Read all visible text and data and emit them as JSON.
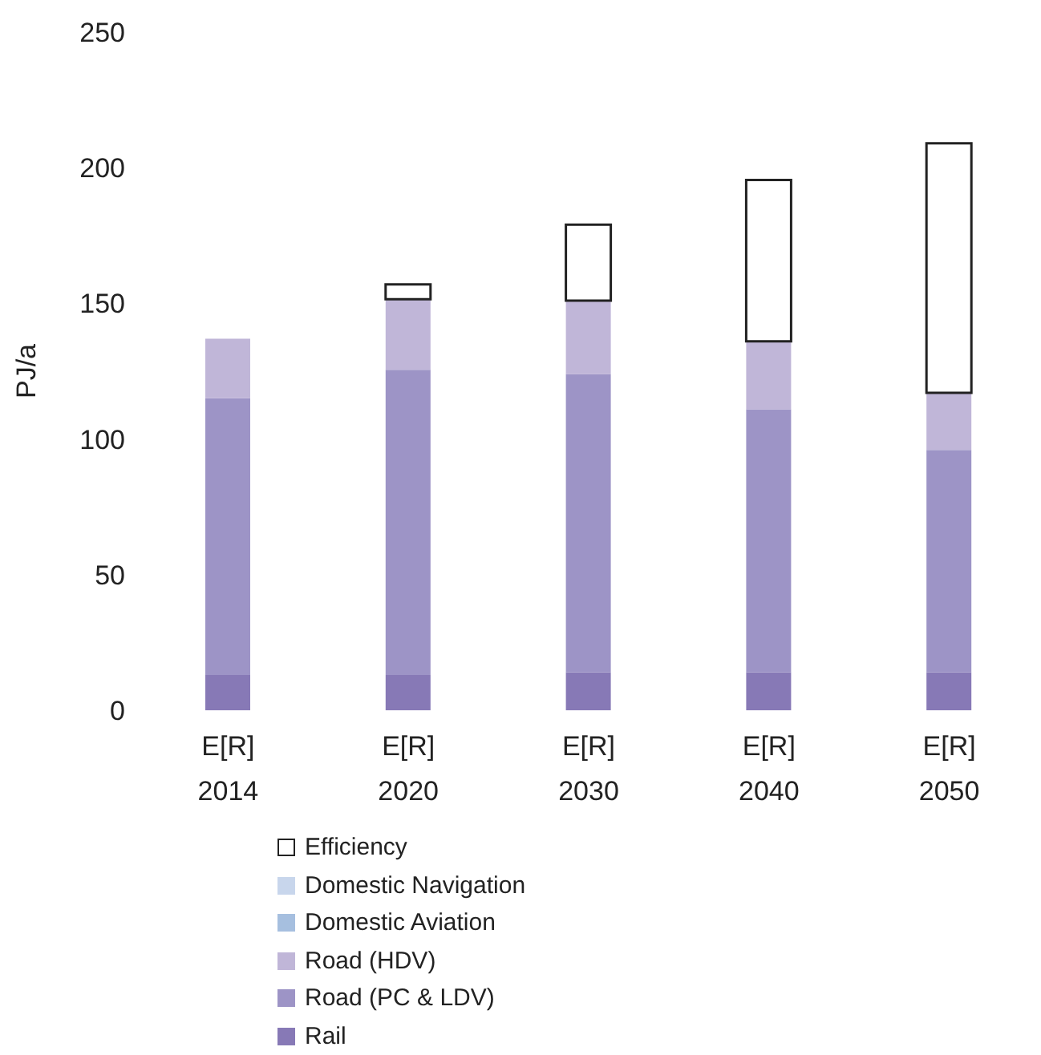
{
  "chart_data": {
    "type": "bar",
    "ylabel": "PJ/a",
    "categories": [
      "E[R]\n2014",
      "E[R]\n2020",
      "E[R]\n2030",
      "E[R]\n2040",
      "E[R]\n2050"
    ],
    "stacked": true,
    "ylim": [
      0,
      250
    ],
    "yticks": [
      0,
      50,
      100,
      150,
      200,
      250
    ],
    "grid": false,
    "legend": "bottom",
    "series": [
      {
        "name": "Rail",
        "color": "#8779b6",
        "values": [
          13,
          13,
          14,
          14,
          14
        ]
      },
      {
        "name": "Road (PC & LDV)",
        "color": "#9d94c6",
        "values": [
          102,
          112.5,
          110,
          97,
          82
        ]
      },
      {
        "name": "Road (HDV)",
        "color": "#c0b6d8",
        "values": [
          22,
          26,
          27,
          25,
          21
        ]
      },
      {
        "name": "Domestic Aviation",
        "color": "#a6bfdf",
        "values": [
          0,
          null,
          null,
          null,
          null
        ]
      },
      {
        "name": "Domestic Navigation",
        "color": "#c8d6ec",
        "values": [
          0,
          0,
          0,
          0,
          0
        ]
      },
      {
        "name": "Efficiency",
        "color": "#ffffff",
        "values": [
          0,
          5.5,
          28,
          59.5,
          92
        ]
      }
    ]
  }
}
